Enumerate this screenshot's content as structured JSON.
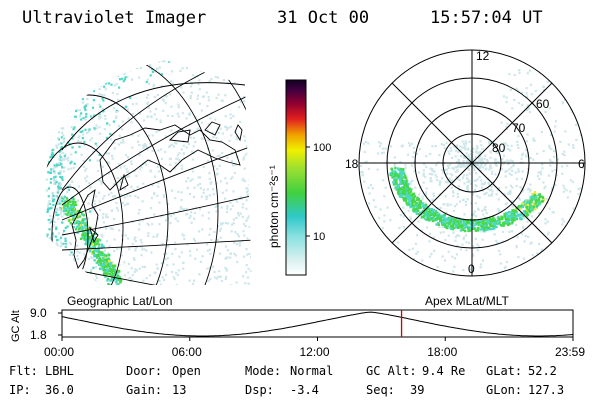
{
  "header": {
    "instrument": "Ultraviolet Imager",
    "date": "31 Oct 00",
    "time": "15:57:04 UT"
  },
  "colorbar": {
    "label": "photon cm⁻²s⁻¹",
    "ticks": [
      "100",
      "10"
    ]
  },
  "polar_plot": {
    "mlt_labels": [
      "12",
      "18",
      "6",
      "0"
    ],
    "lat_labels": [
      "60",
      "70",
      "80"
    ]
  },
  "projection_labels": {
    "left": "Geographic Lat/Lon",
    "right": "Apex MLat/MLT"
  },
  "timeline": {
    "ylabel": "GC Alt",
    "y_ticks": [
      "9.0",
      "1.8"
    ],
    "x_ticks": [
      "00:00",
      "06:00",
      "12:00",
      "18:00",
      "23:59"
    ],
    "current_time_fraction": 0.6645,
    "marker_color": "#cc0000"
  },
  "info": {
    "flt_label": "Flt:",
    "flt_value": "LBHL",
    "door_label": "Door:",
    "door_value": "Open",
    "mode_label": "Mode:",
    "mode_value": "Normal",
    "gcalt_label": "GC Alt:",
    "gcalt_value": "9.4 Re",
    "glat_label": "GLat:",
    "glat_value": "52.2",
    "ip_label": "IP:",
    "ip_value": "36.0",
    "gain_label": "Gain:",
    "gain_value": "13",
    "dsp_label": "Dsp:",
    "dsp_value": "-3.4",
    "seq_label": "Seq:",
    "seq_value": "39",
    "glon_label": "GLon:",
    "glon_value": "127.3"
  },
  "colors": {
    "faint": "#cde6ea",
    "cyan": "#4fd8c8",
    "green": "#46d846",
    "yellow": "#e8e840"
  }
}
